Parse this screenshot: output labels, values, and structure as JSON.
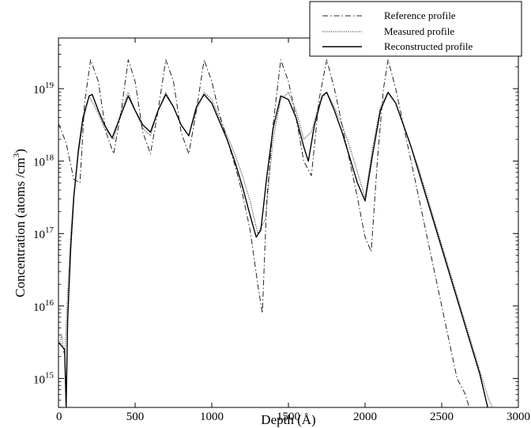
{
  "chart_data": {
    "type": "line",
    "title": "",
    "xlabel": "Depth (Å)",
    "ylabel_main": "Concentration (atoms /cm",
    "ylabel_sup": "3",
    "ylabel_tail": ")",
    "xlim": [
      0,
      3000
    ],
    "ylim_log10": [
      14.6,
      19.7
    ],
    "y_scale": "log",
    "grid": false,
    "legend_position": "top-right",
    "x_ticks": [
      {
        "value": 0,
        "label": "0"
      },
      {
        "value": 500,
        "label": "500"
      },
      {
        "value": 1000,
        "label": "1000"
      },
      {
        "value": 1500,
        "label": "1500"
      },
      {
        "value": 2000,
        "label": "2000"
      },
      {
        "value": 2500,
        "label": "2500"
      },
      {
        "value": 3000,
        "label": "3000"
      }
    ],
    "y_ticks": [
      {
        "exp": 15,
        "label_base": "10",
        "label_exp": "15"
      },
      {
        "exp": 16,
        "label_base": "10",
        "label_exp": "16"
      },
      {
        "exp": 17,
        "label_base": "10",
        "label_exp": "17"
      },
      {
        "exp": 18,
        "label_base": "10",
        "label_exp": "18"
      },
      {
        "exp": 19,
        "label_base": "10",
        "label_exp": "19"
      }
    ],
    "series": [
      {
        "name": "Reference profile",
        "style": "dashdot",
        "x": [
          0,
          50,
          100,
          140,
          170,
          210,
          260,
          310,
          360,
          410,
          455,
          500,
          550,
          600,
          650,
          700,
          750,
          800,
          850,
          900,
          950,
          1000,
          1050,
          1100,
          1150,
          1200,
          1250,
          1300,
          1330,
          1360,
          1400,
          1450,
          1500,
          1550,
          1600,
          1650,
          1700,
          1750,
          1800,
          1850,
          1900,
          1950,
          2000,
          2040,
          2080,
          2120,
          2150,
          2200,
          2250,
          2300,
          2350,
          2400,
          2450,
          2500,
          2550,
          2600,
          2650,
          2680
        ],
        "logy": [
          18.52,
          18.25,
          17.75,
          17.7,
          18.8,
          19.4,
          19.1,
          18.4,
          18.1,
          18.7,
          19.4,
          19.1,
          18.4,
          18.1,
          18.7,
          19.4,
          19.1,
          18.4,
          18.1,
          18.7,
          19.4,
          19.1,
          18.65,
          18.3,
          17.95,
          17.55,
          17.05,
          16.3,
          15.9,
          17.5,
          18.5,
          19.4,
          19.1,
          18.6,
          18.0,
          17.8,
          18.85,
          19.4,
          19.0,
          18.5,
          18.0,
          17.5,
          16.95,
          16.75,
          18.0,
          19.0,
          19.4,
          19.0,
          18.5,
          18.0,
          17.5,
          17.0,
          16.5,
          16.0,
          15.5,
          15.0,
          14.8,
          14.6
        ]
      },
      {
        "name": "Measured profile",
        "style": "dotted",
        "x": [
          0,
          10,
          20,
          35,
          45,
          60,
          80,
          100,
          130,
          160,
          200,
          250,
          300,
          360,
          410,
          455,
          500,
          550,
          600,
          650,
          700,
          750,
          800,
          850,
          900,
          950,
          1000,
          1050,
          1100,
          1150,
          1200,
          1250,
          1300,
          1350,
          1400,
          1450,
          1500,
          1550,
          1600,
          1650,
          1700,
          1750,
          1800,
          1850,
          1900,
          1950,
          2000,
          2050,
          2100,
          2150,
          2200,
          2250,
          2300,
          2350,
          2400,
          2450,
          2500,
          2550,
          2600,
          2650,
          2700,
          2750,
          2800,
          2830
        ],
        "logy": [
          15.45,
          15.5,
          15.6,
          15.35,
          15.45,
          16.2,
          17.0,
          17.55,
          18.1,
          18.55,
          18.9,
          18.7,
          18.45,
          18.3,
          18.7,
          18.95,
          18.7,
          18.45,
          18.35,
          18.7,
          18.95,
          18.75,
          18.5,
          18.35,
          18.7,
          18.95,
          18.85,
          18.6,
          18.35,
          18.1,
          17.8,
          17.45,
          17.0,
          17.2,
          18.3,
          18.85,
          18.95,
          18.7,
          18.3,
          18.4,
          18.8,
          18.95,
          18.75,
          18.5,
          18.2,
          17.85,
          17.5,
          18.2,
          18.75,
          18.95,
          18.8,
          18.5,
          18.2,
          17.9,
          17.55,
          17.2,
          16.85,
          16.5,
          16.15,
          15.8,
          15.45,
          15.1,
          14.75,
          14.6
        ]
      },
      {
        "name": "Reconstructed profile",
        "style": "solid",
        "x": [
          0,
          40,
          50,
          60,
          80,
          100,
          130,
          160,
          200,
          220,
          260,
          300,
          350,
          410,
          455,
          500,
          550,
          600,
          650,
          700,
          750,
          800,
          850,
          900,
          950,
          1000,
          1050,
          1100,
          1150,
          1200,
          1250,
          1290,
          1320,
          1360,
          1400,
          1450,
          1500,
          1550,
          1600,
          1630,
          1670,
          1720,
          1750,
          1800,
          1850,
          1900,
          1950,
          2000,
          2050,
          2100,
          2150,
          2200,
          2250,
          2300,
          2350,
          2400,
          2450,
          2500,
          2550,
          2600,
          2650,
          2700,
          2750,
          2800
        ],
        "logy": [
          15.5,
          15.4,
          14.6,
          15.8,
          16.8,
          17.5,
          18.15,
          18.6,
          18.9,
          18.92,
          18.7,
          18.5,
          18.32,
          18.65,
          18.9,
          18.7,
          18.5,
          18.4,
          18.7,
          18.92,
          18.75,
          18.5,
          18.35,
          18.75,
          18.92,
          18.8,
          18.55,
          18.3,
          18.0,
          17.65,
          17.25,
          16.95,
          17.05,
          17.8,
          18.45,
          18.9,
          18.85,
          18.6,
          18.2,
          18.0,
          18.5,
          18.9,
          18.95,
          18.7,
          18.4,
          18.05,
          17.7,
          17.45,
          18.1,
          18.7,
          18.95,
          18.8,
          18.5,
          18.2,
          17.85,
          17.5,
          17.15,
          16.8,
          16.45,
          16.1,
          15.75,
          15.4,
          15.05,
          14.6
        ]
      }
    ]
  }
}
